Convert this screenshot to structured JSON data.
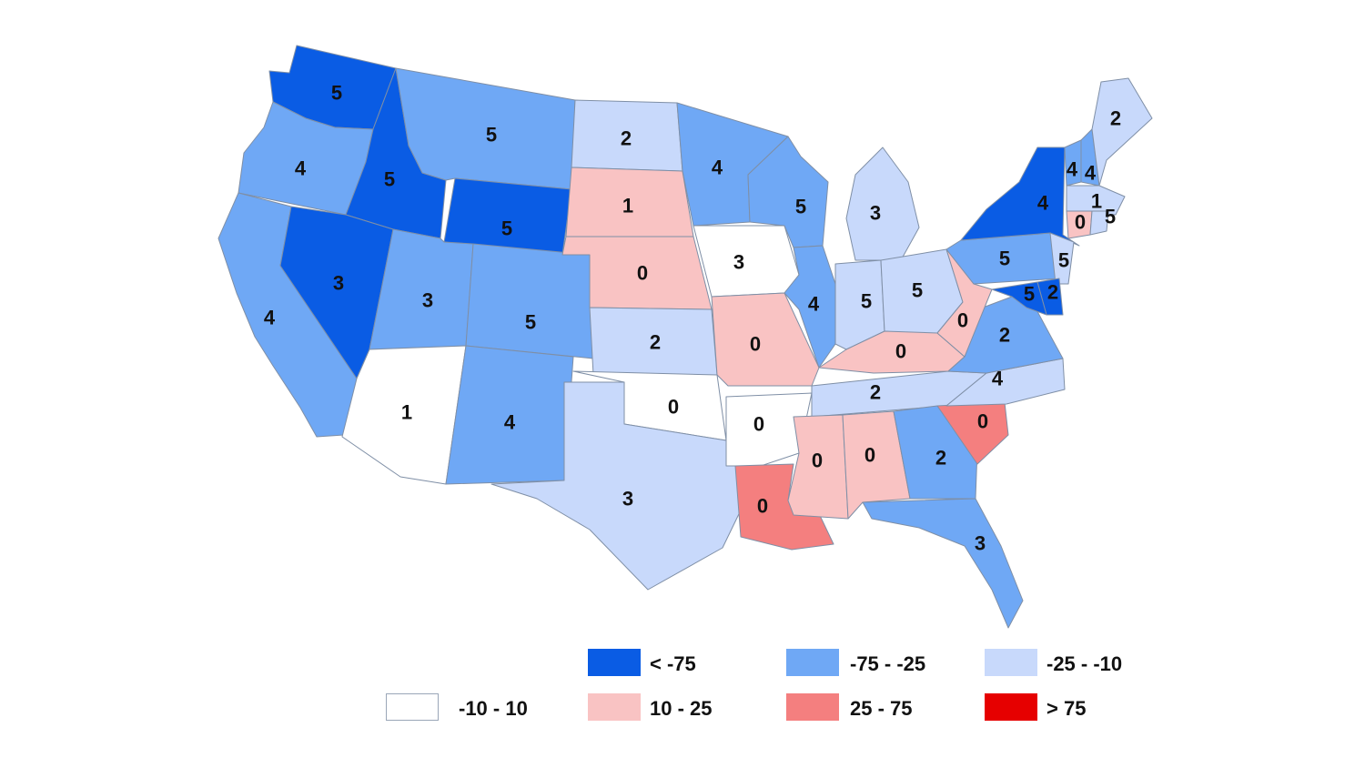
{
  "classes": [
    {
      "key": "lt-75",
      "label": "< -75",
      "color": "#0a5ce4"
    },
    {
      "key": "m75-25",
      "label": "-75 - -25",
      "color": "#6fa8f5"
    },
    {
      "key": "m25-10",
      "label": "-25 - -10",
      "color": "#c8d9fb"
    },
    {
      "key": "m10-10",
      "label": "-10 - 10",
      "color": "#ffffff"
    },
    {
      "key": "p10-25",
      "label": "10 - 25",
      "color": "#f9c3c3"
    },
    {
      "key": "p25-75",
      "label": "25 - 75",
      "color": "#f47f7f"
    },
    {
      "key": "gt75",
      "label": "> 75",
      "color": "#e60000"
    }
  ],
  "states": [
    {
      "abbr": "WA",
      "value": "5",
      "cls": "lt-75"
    },
    {
      "abbr": "OR",
      "value": "4",
      "cls": "m75-25"
    },
    {
      "abbr": "CA",
      "value": "4",
      "cls": "m75-25"
    },
    {
      "abbr": "ID",
      "value": "5",
      "cls": "lt-75"
    },
    {
      "abbr": "NV",
      "value": "3",
      "cls": "lt-75"
    },
    {
      "abbr": "MT",
      "value": "5",
      "cls": "m75-25"
    },
    {
      "abbr": "WY",
      "value": "5",
      "cls": "lt-75"
    },
    {
      "abbr": "UT",
      "value": "3",
      "cls": "m75-25"
    },
    {
      "abbr": "CO",
      "value": "5",
      "cls": "m75-25"
    },
    {
      "abbr": "AZ",
      "value": "1",
      "cls": "m10-10"
    },
    {
      "abbr": "NM",
      "value": "4",
      "cls": "m75-25"
    },
    {
      "abbr": "ND",
      "value": "2",
      "cls": "m25-10"
    },
    {
      "abbr": "SD",
      "value": "1",
      "cls": "p10-25"
    },
    {
      "abbr": "NE",
      "value": "0",
      "cls": "p10-25"
    },
    {
      "abbr": "KS",
      "value": "2",
      "cls": "m25-10"
    },
    {
      "abbr": "OK",
      "value": "0",
      "cls": "m10-10"
    },
    {
      "abbr": "TX",
      "value": "3",
      "cls": "m25-10"
    },
    {
      "abbr": "MN",
      "value": "4",
      "cls": "m75-25"
    },
    {
      "abbr": "IA",
      "value": "3",
      "cls": "m10-10"
    },
    {
      "abbr": "MO",
      "value": "0",
      "cls": "p10-25"
    },
    {
      "abbr": "AR",
      "value": "0",
      "cls": "m10-10"
    },
    {
      "abbr": "LA",
      "value": "0",
      "cls": "p25-75"
    },
    {
      "abbr": "WI",
      "value": "5",
      "cls": "m75-25"
    },
    {
      "abbr": "IL",
      "value": "4",
      "cls": "m75-25"
    },
    {
      "abbr": "MI",
      "value": "3",
      "cls": "m25-10"
    },
    {
      "abbr": "IN",
      "value": "5",
      "cls": "m25-10"
    },
    {
      "abbr": "OH",
      "value": "5",
      "cls": "m25-10"
    },
    {
      "abbr": "KY",
      "value": "0",
      "cls": "p10-25"
    },
    {
      "abbr": "TN",
      "value": "2",
      "cls": "m25-10"
    },
    {
      "abbr": "MS",
      "value": "0",
      "cls": "p10-25"
    },
    {
      "abbr": "AL",
      "value": "0",
      "cls": "p10-25"
    },
    {
      "abbr": "GA",
      "value": "2",
      "cls": "m75-25"
    },
    {
      "abbr": "FL",
      "value": "3",
      "cls": "m75-25"
    },
    {
      "abbr": "SC",
      "value": "0",
      "cls": "p25-75"
    },
    {
      "abbr": "NC",
      "value": "4",
      "cls": "m25-10"
    },
    {
      "abbr": "VA",
      "value": "2",
      "cls": "m75-25"
    },
    {
      "abbr": "WV",
      "value": "0",
      "cls": "p10-25"
    },
    {
      "abbr": "PA",
      "value": "5",
      "cls": "m75-25"
    },
    {
      "abbr": "NY",
      "value": "4",
      "cls": "lt-75"
    },
    {
      "abbr": "VT",
      "value": "4",
      "cls": "m75-25"
    },
    {
      "abbr": "NH",
      "value": "4",
      "cls": "m75-25"
    },
    {
      "abbr": "ME",
      "value": "2",
      "cls": "m25-10"
    },
    {
      "abbr": "MA",
      "value": "1",
      "cls": "m25-10"
    },
    {
      "abbr": "CT",
      "value": "0",
      "cls": "p10-25"
    },
    {
      "abbr": "RI",
      "value": "5",
      "cls": "m25-10"
    },
    {
      "abbr": "NJ",
      "value": "5",
      "cls": "m25-10"
    },
    {
      "abbr": "DE",
      "value": "2",
      "cls": "lt-75"
    },
    {
      "abbr": "MD",
      "value": "5",
      "cls": "lt-75"
    }
  ]
}
